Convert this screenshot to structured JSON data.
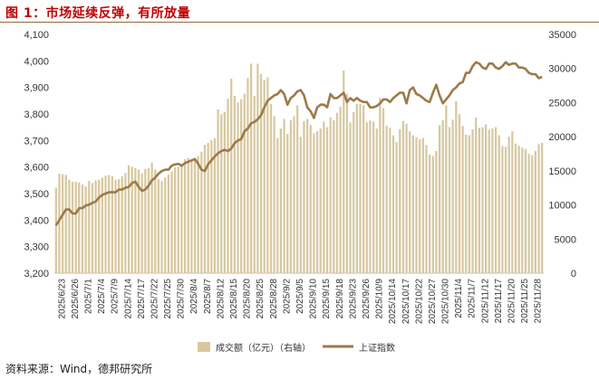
{
  "header": {
    "title": "图 1：市场延续反弹，有所放量"
  },
  "footer": {
    "source": "资料来源：Wind，德邦研究所"
  },
  "colors": {
    "bars": "#d7c8a0",
    "line": "#9c7a4b",
    "title": "#c00000"
  },
  "chart_data": {
    "type": "bar+line",
    "xlabel": "",
    "ylabel_left": "",
    "ylabel_right": "",
    "left_axis": {
      "min": 3200,
      "max": 4100,
      "ticks": [
        "3,200",
        "3,300",
        "3,400",
        "3,500",
        "3,600",
        "3,700",
        "3,800",
        "3,900",
        "4,000",
        "4,100"
      ]
    },
    "right_axis": {
      "min": 0,
      "max": 35000,
      "ticks": [
        "0",
        "5000",
        "10000",
        "15000",
        "20000",
        "25000",
        "30000",
        "35000"
      ]
    },
    "x_tick_labels": [
      "2025/6/23",
      "2025/6/26",
      "2025/7/1",
      "2025/7/4",
      "2025/7/9",
      "2025/7/14",
      "2025/7/17",
      "2025/7/22",
      "2025/7/25",
      "2025/7/30",
      "2025/8/4",
      "2025/8/7",
      "2025/8/12",
      "2025/8/15",
      "2025/8/20",
      "2025/8/25",
      "2025/8/28",
      "2025/9/2",
      "2025/9/5",
      "2025/9/10",
      "2025/9/15",
      "2025/9/18",
      "2025/9/23",
      "2025/9/26",
      "2025/10/9",
      "2025/10/14",
      "2025/10/17",
      "2025/10/22",
      "2025/10/27",
      "2025/10/30",
      "2025/11/4",
      "2025/11/7",
      "2025/11/12",
      "2025/11/17",
      "2025/11/20",
      "2025/11/25",
      "2025/11/28"
    ],
    "legend": {
      "position": "bottom",
      "bar_label": "成交额（亿元）（右轴）",
      "line_label": "上证指数"
    },
    "series": [
      {
        "name": "成交额（亿元）（右轴）",
        "type": "bar",
        "axis": "right",
        "values": [
          12500,
          14600,
          14500,
          14400,
          13700,
          13400,
          13400,
          13300,
          13000,
          12700,
          13500,
          13200,
          13600,
          13700,
          14000,
          14300,
          14400,
          14200,
          13700,
          13800,
          14200,
          14700,
          15800,
          15600,
          15400,
          15200,
          14600,
          15300,
          15400,
          16200,
          15200,
          13800,
          13500,
          14000,
          14500,
          14900,
          15500,
          15600,
          16000,
          16700,
          16900,
          16600,
          16900,
          17200,
          17800,
          18800,
          19100,
          19500,
          19800,
          24000,
          23300,
          23600,
          25600,
          28500,
          26000,
          25000,
          25500,
          26300,
          28600,
          30700,
          26000,
          30700,
          29200,
          28300,
          28700,
          24800,
          23000,
          19800,
          21200,
          22600,
          20400,
          22400,
          23000,
          24600,
          20000,
          22300,
          22600,
          21700,
          20500,
          20800,
          21200,
          22200,
          21400,
          22800,
          22400,
          23500,
          24400,
          29700,
          26300,
          22100,
          23600,
          24800,
          24800,
          24600,
          22100,
          22400,
          22200,
          21200,
          25700,
          24200,
          21600,
          21300,
          20200,
          19200,
          21100,
          22300,
          21900,
          20800,
          20200,
          19900,
          19600,
          19800,
          18800,
          17400,
          17200,
          17900,
          21700,
          22400,
          24600,
          21400,
          22500,
          25200,
          23300,
          21600,
          20300,
          20200,
          21100,
          22800,
          21300,
          21400,
          21800,
          21000,
          21200,
          21400,
          20200,
          18600,
          18500,
          20000,
          20800,
          19000,
          18700,
          18400,
          18200,
          17500,
          17300,
          17900,
          18900,
          19100
        ]
      },
      {
        "name": "上证指数",
        "type": "line",
        "axis": "left",
        "values": [
          3380,
          3400,
          3420,
          3440,
          3440,
          3425,
          3425,
          3445,
          3445,
          3455,
          3458,
          3465,
          3470,
          3485,
          3495,
          3500,
          3505,
          3505,
          3505,
          3515,
          3515,
          3522,
          3525,
          3540,
          3545,
          3525,
          3510,
          3515,
          3530,
          3550,
          3560,
          3575,
          3585,
          3590,
          3590,
          3605,
          3610,
          3612,
          3605,
          3615,
          3620,
          3625,
          3630,
          3612,
          3590,
          3585,
          3610,
          3625,
          3640,
          3652,
          3660,
          3665,
          3660,
          3670,
          3690,
          3700,
          3705,
          3735,
          3745,
          3765,
          3770,
          3780,
          3795,
          3825,
          3850,
          3860,
          3870,
          3875,
          3890,
          3875,
          3835,
          3860,
          3870,
          3885,
          3890,
          3870,
          3825,
          3810,
          3785,
          3825,
          3835,
          3835,
          3825,
          3875,
          3860,
          3860,
          3870,
          3880,
          3845,
          3860,
          3850,
          3860,
          3850,
          3845,
          3845,
          3825,
          3825,
          3830,
          3840,
          3855,
          3855,
          3845,
          3860,
          3870,
          3880,
          3880,
          3840,
          3890,
          3900,
          3875,
          3870,
          3860,
          3850,
          3845,
          3880,
          3910,
          3870,
          3840,
          3855,
          3870,
          3890,
          3900,
          3915,
          3920,
          3955,
          3955,
          3980,
          3995,
          3990,
          3975,
          3970,
          3990,
          3990,
          3975,
          3970,
          3980,
          3995,
          3985,
          3990,
          3990,
          3975,
          3975,
          3970,
          3955,
          3950,
          3950,
          3935,
          3940
        ]
      }
    ]
  }
}
